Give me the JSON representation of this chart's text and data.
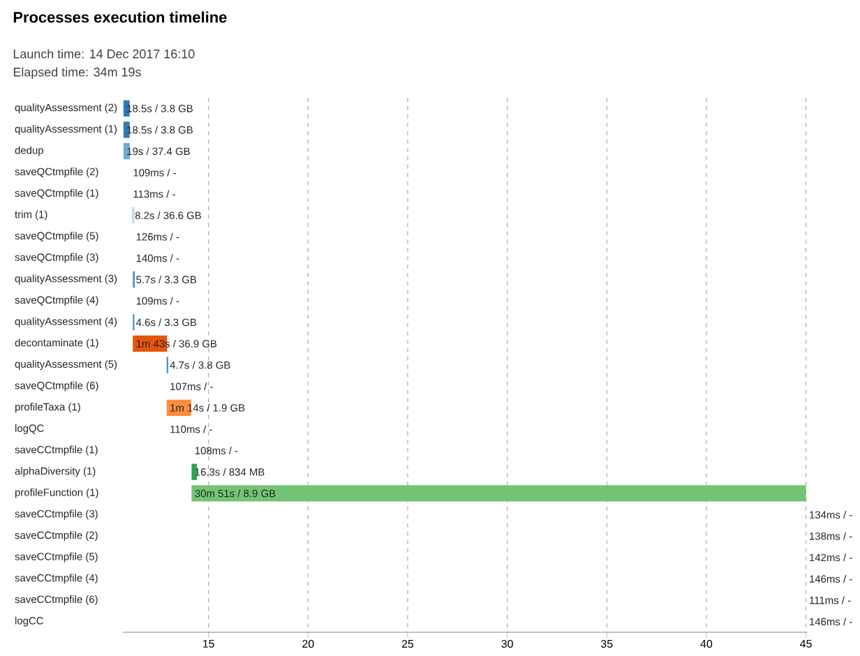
{
  "chart_data": {
    "type": "bar",
    "orientation": "horizontal",
    "title": "Processes execution timeline",
    "annotations": [
      "Launch time: 14 Dec 2017 16:10",
      "Elapsed time: 34m 19s",
      {
        "text": "18.5s / 3.8 GB",
        "x": 10.73,
        "y": "qualityAssessment (2)"
      },
      {
        "text": "18.5s / 3.8 GB",
        "x": 10.73,
        "y": "qualityAssessment (1)"
      },
      {
        "text": "19s / 37.4 GB",
        "x": 10.73,
        "y": "dedup"
      },
      {
        "text": "109ms / -",
        "x": 11.05,
        "y": "saveQCtmpfile (2)"
      },
      {
        "text": "113ms / -",
        "x": 11.05,
        "y": "saveQCtmpfile (1)"
      },
      {
        "text": "8.2s / 36.6 GB",
        "x": 11.15,
        "y": "trim (1)"
      },
      {
        "text": "126ms / -",
        "x": 11.2,
        "y": "saveQCtmpfile (5)"
      },
      {
        "text": "140ms / -",
        "x": 11.2,
        "y": "saveQCtmpfile (3)"
      },
      {
        "text": "5.7s / 3.3 GB",
        "x": 11.2,
        "y": "qualityAssessment (3)"
      },
      {
        "text": "109ms / -",
        "x": 11.2,
        "y": "saveQCtmpfile (4)"
      },
      {
        "text": "4.6s / 3.3 GB",
        "x": 11.2,
        "y": "qualityAssessment (4)"
      },
      {
        "text": "1m 43s / 36.9 GB",
        "x": 11.2,
        "y": "decontaminate (1)"
      },
      {
        "text": "4.7s / 3.8 GB",
        "x": 12.9,
        "y": "qualityAssessment (5)"
      },
      {
        "text": "107ms / -",
        "x": 12.9,
        "y": "saveQCtmpfile (6)"
      },
      {
        "text": "1m 14s / 1.9 GB",
        "x": 12.9,
        "y": "profileTaxa (1)"
      },
      {
        "text": "110ms / -",
        "x": 12.9,
        "y": "logQC"
      },
      {
        "text": "108ms / -",
        "x": 14.15,
        "y": "saveCCtmpfile (1)"
      },
      {
        "text": "16.3s / 834 MB",
        "x": 14.15,
        "y": "alphaDiversity (1)"
      },
      {
        "text": "30m 51s / 8.9 GB",
        "x": 14.15,
        "y": "profileFunction (1)"
      },
      {
        "text": "134ms / -",
        "x": 45.0,
        "y": "saveCCtmpfile (3)"
      },
      {
        "text": "138ms / -",
        "x": 45.0,
        "y": "saveCCtmpfile (2)"
      },
      {
        "text": "142ms / -",
        "x": 45.0,
        "y": "saveCCtmpfile (5)"
      },
      {
        "text": "146ms / -",
        "x": 45.0,
        "y": "saveCCtmpfile (4)"
      },
      {
        "text": "111ms / -",
        "x": 45.0,
        "y": "saveCCtmpfile (6)"
      },
      {
        "text": "146ms / -",
        "x": 45.0,
        "y": "logCC"
      }
    ],
    "categories": [
      "qualityAssessment (2)",
      "qualityAssessment (1)",
      "dedup",
      "saveQCtmpfile (2)",
      "saveQCtmpfile (1)",
      "trim (1)",
      "saveQCtmpfile (5)",
      "saveQCtmpfile (3)",
      "qualityAssessment (3)",
      "saveQCtmpfile (4)",
      "qualityAssessment (4)",
      "decontaminate (1)",
      "qualityAssessment (5)",
      "saveQCtmpfile (6)",
      "profileTaxa (1)",
      "logQC",
      "saveCCtmpfile (1)",
      "alphaDiversity (1)",
      "profileFunction (1)",
      "saveCCtmpfile (3)",
      "saveCCtmpfile (2)",
      "saveCCtmpfile (5)",
      "saveCCtmpfile (4)",
      "saveCCtmpfile (6)",
      "logCC"
    ],
    "base": [
      10.73,
      10.73,
      10.73,
      11.05,
      11.05,
      11.15,
      11.2,
      11.2,
      11.2,
      11.2,
      11.2,
      11.2,
      12.9,
      12.9,
      12.9,
      12.9,
      14.15,
      14.15,
      14.15,
      45.0,
      45.0,
      45.0,
      45.0,
      45.0,
      45.0
    ],
    "values": [
      0.31,
      0.31,
      0.32,
      0.002,
      0.002,
      0.14,
      0.002,
      0.002,
      0.1,
      0.002,
      0.08,
      1.72,
      0.08,
      0.002,
      1.23,
      0.002,
      0.002,
      0.27,
      30.85,
      0.002,
      0.002,
      0.002,
      0.002,
      0.002,
      0.002
    ],
    "colors": [
      "#2c7bb6",
      "#2c7bb6",
      "#6baed6",
      "#deebf7",
      "#deebf7",
      "#c6dbef",
      "#deebf7",
      "#deebf7",
      "#4a90c8",
      "#deebf7",
      "#4a90c8",
      "#e6550d",
      "#4a90c8",
      "#deebf7",
      "#fd8d3c",
      "#deebf7",
      "#e5f5e0",
      "#31a354",
      "#74c476",
      "#e5f5e0",
      "#e5f5e0",
      "#e5f5e0",
      "#e5f5e0",
      "#e5f5e0",
      "#e5f5e0"
    ],
    "xlim": [
      10.7,
      45.05
    ],
    "xticks": [
      15,
      20,
      25,
      30,
      35,
      40,
      45
    ],
    "grid": "x"
  }
}
